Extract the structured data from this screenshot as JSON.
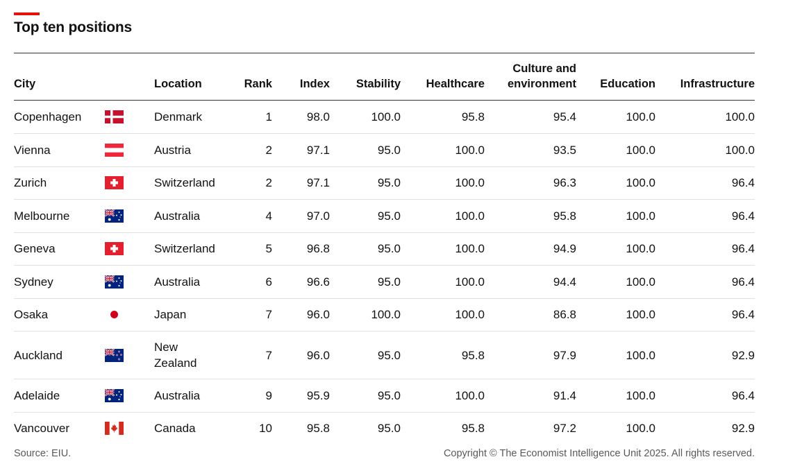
{
  "title": "Top ten positions",
  "accent_color": "#e3120b",
  "footer": {
    "source": "Source: EIU.",
    "copyright": "Copyright © The Economist Intelligence Unit 2025. All rights reserved."
  },
  "chart_data": {
    "type": "table",
    "title": "Top ten positions",
    "columns": [
      "City",
      "Location",
      "Rank",
      "Index",
      "Stability",
      "Healthcare",
      "Culture and environment",
      "Education",
      "Infrastructure"
    ],
    "header_lines": {
      "culture_line1": "Culture and",
      "culture_line2": "environment"
    },
    "rows": [
      {
        "city": "Copenhagen",
        "flag": "denmark-flag",
        "location": "Denmark",
        "rank": "1",
        "index": "98.0",
        "stability": "100.0",
        "healthcare": "95.8",
        "culture": "95.4",
        "education": "100.0",
        "infrastructure": "100.0"
      },
      {
        "city": "Vienna",
        "flag": "austria-flag",
        "location": "Austria",
        "rank": "2",
        "index": "97.1",
        "stability": "95.0",
        "healthcare": "100.0",
        "culture": "93.5",
        "education": "100.0",
        "infrastructure": "100.0"
      },
      {
        "city": "Zurich",
        "flag": "switzerland-flag",
        "location": "Switzerland",
        "rank": "2",
        "index": "97.1",
        "stability": "95.0",
        "healthcare": "100.0",
        "culture": "96.3",
        "education": "100.0",
        "infrastructure": "96.4"
      },
      {
        "city": "Melbourne",
        "flag": "australia-flag",
        "location": "Australia",
        "rank": "4",
        "index": "97.0",
        "stability": "95.0",
        "healthcare": "100.0",
        "culture": "95.8",
        "education": "100.0",
        "infrastructure": "96.4"
      },
      {
        "city": "Geneva",
        "flag": "switzerland-flag",
        "location": "Switzerland",
        "rank": "5",
        "index": "96.8",
        "stability": "95.0",
        "healthcare": "100.0",
        "culture": "94.9",
        "education": "100.0",
        "infrastructure": "96.4"
      },
      {
        "city": "Sydney",
        "flag": "australia-flag",
        "location": "Australia",
        "rank": "6",
        "index": "96.6",
        "stability": "95.0",
        "healthcare": "100.0",
        "culture": "94.4",
        "education": "100.0",
        "infrastructure": "96.4"
      },
      {
        "city": "Osaka",
        "flag": "japan-flag",
        "location": "Japan",
        "rank": "7",
        "index": "96.0",
        "stability": "100.0",
        "healthcare": "100.0",
        "culture": "86.8",
        "education": "100.0",
        "infrastructure": "96.4"
      },
      {
        "city": "Auckland",
        "flag": "new-zealand-flag",
        "location": "New Zealand",
        "location_lines": [
          "New",
          "Zealand"
        ],
        "rank": "7",
        "index": "96.0",
        "stability": "95.0",
        "healthcare": "95.8",
        "culture": "97.9",
        "education": "100.0",
        "infrastructure": "92.9"
      },
      {
        "city": "Adelaide",
        "flag": "australia-flag",
        "location": "Australia",
        "rank": "9",
        "index": "95.9",
        "stability": "95.0",
        "healthcare": "100.0",
        "culture": "91.4",
        "education": "100.0",
        "infrastructure": "96.4"
      },
      {
        "city": "Vancouver",
        "flag": "canada-flag",
        "location": "Canada",
        "rank": "10",
        "index": "95.8",
        "stability": "95.0",
        "healthcare": "95.8",
        "culture": "97.2",
        "education": "100.0",
        "infrastructure": "92.9"
      }
    ]
  }
}
